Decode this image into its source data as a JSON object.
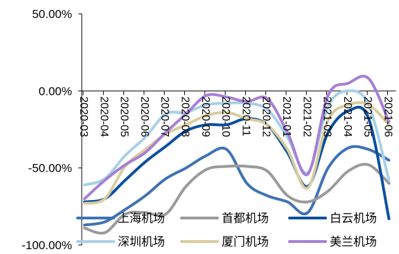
{
  "chart_data": {
    "type": "line",
    "title": "",
    "xlabel": "",
    "ylabel": "",
    "categories": [
      "2020-03",
      "2020-04",
      "2020-05",
      "2020-06",
      "2020-07",
      "2020-08",
      "2020-09",
      "2020-10",
      "2020-11",
      "2020-12",
      "2021-01",
      "2021-02",
      "2021-03",
      "2021-04",
      "2021-05",
      "2021-06"
    ],
    "ylim": [
      -100,
      50
    ],
    "yticks": [
      "50.00%",
      "0.00%",
      "-50.00%",
      "-100.00%"
    ],
    "ytick_values": [
      50,
      0,
      -50,
      -100
    ],
    "grid": false,
    "legend_position": "bottom",
    "series": [
      {
        "name": "上海机场",
        "color": "#3f72b5",
        "values": [
          -87,
          -85,
          -77,
          -68,
          -57,
          -50,
          -42,
          -38,
          -60,
          -68,
          -72,
          -79,
          -50,
          -37,
          -38,
          -45
        ]
      },
      {
        "name": "首都机场",
        "color": "#9a9a9a",
        "values": [
          -89,
          -92,
          -80,
          -79,
          -80,
          -62,
          -51,
          -49,
          -49,
          -52,
          -68,
          -72,
          -65,
          -52,
          -48,
          -60
        ]
      },
      {
        "name": "白云机场",
        "color": "#0b4f9e",
        "values": [
          -72,
          -70,
          -58,
          -46,
          -36,
          -26,
          -22,
          -22,
          -18,
          -22,
          -40,
          -62,
          -27,
          -13,
          -18,
          -83
        ]
      },
      {
        "name": "深圳机场",
        "color": "#a8d0e6",
        "values": [
          -61,
          -57,
          -42,
          -30,
          -15,
          -14,
          -9,
          -8,
          -8,
          -12,
          -30,
          -53,
          -10,
          0,
          -9,
          -58
        ]
      },
      {
        "name": "厦门机场",
        "color": "#d9cc9e",
        "values": [
          -73,
          -70,
          -49,
          -38,
          -28,
          -22,
          -16,
          -14,
          -18,
          -22,
          -38,
          -63,
          -19,
          -9,
          -9,
          -22
        ]
      },
      {
        "name": "美兰机场",
        "color": "#a67fd6",
        "values": [
          -70,
          -58,
          -48,
          -40,
          -27,
          -15,
          -3,
          -4,
          -7,
          -5,
          -27,
          -54,
          -3,
          5,
          8,
          -20
        ]
      }
    ]
  }
}
